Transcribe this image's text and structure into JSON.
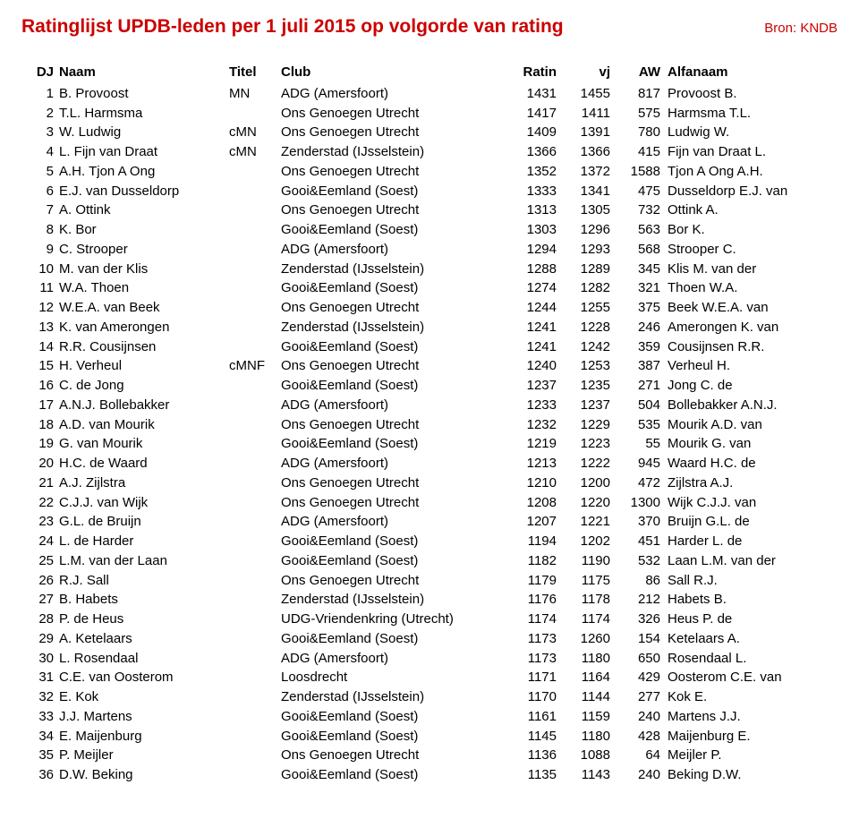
{
  "title": "Ratinglijst UPDB-leden per 1 juli 2015 op volgorde van rating",
  "source": "Bron: KNDB",
  "colors": {
    "title": "#cc0000",
    "text": "#000000",
    "background": "#ffffff"
  },
  "columns": {
    "dj": "DJ",
    "naam": "Naam",
    "titel": "Titel",
    "club": "Club",
    "ratin": "Ratin",
    "vj": "vj",
    "aw": "AW",
    "alfanaam": "Alfanaam"
  },
  "rows": [
    {
      "dj": "1",
      "naam": "B. Provoost",
      "titel": "MN",
      "club": "ADG (Amersfoort)",
      "ratin": "1431",
      "vj": "1455",
      "aw": "817",
      "alfa": "Provoost B."
    },
    {
      "dj": "2",
      "naam": "T.L. Harmsma",
      "titel": "",
      "club": "Ons Genoegen Utrecht",
      "ratin": "1417",
      "vj": "1411",
      "aw": "575",
      "alfa": "Harmsma T.L."
    },
    {
      "dj": "3",
      "naam": "W. Ludwig",
      "titel": "cMN",
      "club": "Ons Genoegen Utrecht",
      "ratin": "1409",
      "vj": "1391",
      "aw": "780",
      "alfa": "Ludwig W."
    },
    {
      "dj": "4",
      "naam": "L. Fijn van Draat",
      "titel": "cMN",
      "club": "Zenderstad (IJsselstein)",
      "ratin": "1366",
      "vj": "1366",
      "aw": "415",
      "alfa": "Fijn van Draat L."
    },
    {
      "dj": "5",
      "naam": "A.H. Tjon A Ong",
      "titel": "",
      "club": "Ons Genoegen Utrecht",
      "ratin": "1352",
      "vj": "1372",
      "aw": "1588",
      "alfa": "Tjon A Ong A.H."
    },
    {
      "dj": "6",
      "naam": "E.J. van Dusseldorp",
      "titel": "",
      "club": "Gooi&Eemland (Soest)",
      "ratin": "1333",
      "vj": "1341",
      "aw": "475",
      "alfa": "Dusseldorp E.J. van"
    },
    {
      "dj": "7",
      "naam": "A. Ottink",
      "titel": "",
      "club": "Ons Genoegen Utrecht",
      "ratin": "1313",
      "vj": "1305",
      "aw": "732",
      "alfa": "Ottink A."
    },
    {
      "dj": "8",
      "naam": "K. Bor",
      "titel": "",
      "club": "Gooi&Eemland (Soest)",
      "ratin": "1303",
      "vj": "1296",
      "aw": "563",
      "alfa": "Bor K."
    },
    {
      "dj": "9",
      "naam": "C. Strooper",
      "titel": "",
      "club": "ADG (Amersfoort)",
      "ratin": "1294",
      "vj": "1293",
      "aw": "568",
      "alfa": "Strooper C."
    },
    {
      "dj": "10",
      "naam": "M. van der Klis",
      "titel": "",
      "club": "Zenderstad (IJsselstein)",
      "ratin": "1288",
      "vj": "1289",
      "aw": "345",
      "alfa": "Klis M. van der"
    },
    {
      "dj": "11",
      "naam": "W.A. Thoen",
      "titel": "",
      "club": "Gooi&Eemland (Soest)",
      "ratin": "1274",
      "vj": "1282",
      "aw": "321",
      "alfa": "Thoen W.A."
    },
    {
      "dj": "12",
      "naam": "W.E.A. van Beek",
      "titel": "",
      "club": "Ons Genoegen Utrecht",
      "ratin": "1244",
      "vj": "1255",
      "aw": "375",
      "alfa": "Beek W.E.A. van"
    },
    {
      "dj": "13",
      "naam": "K. van Amerongen",
      "titel": "",
      "club": "Zenderstad (IJsselstein)",
      "ratin": "1241",
      "vj": "1228",
      "aw": "246",
      "alfa": "Amerongen K. van"
    },
    {
      "dj": "14",
      "naam": "R.R. Cousijnsen",
      "titel": "",
      "club": "Gooi&Eemland (Soest)",
      "ratin": "1241",
      "vj": "1242",
      "aw": "359",
      "alfa": "Cousijnsen R.R."
    },
    {
      "dj": "15",
      "naam": "H. Verheul",
      "titel": "cMNF",
      "club": "Ons Genoegen Utrecht",
      "ratin": "1240",
      "vj": "1253",
      "aw": "387",
      "alfa": "Verheul H."
    },
    {
      "dj": "16",
      "naam": "C. de Jong",
      "titel": "",
      "club": "Gooi&Eemland (Soest)",
      "ratin": "1237",
      "vj": "1235",
      "aw": "271",
      "alfa": "Jong C. de"
    },
    {
      "dj": "17",
      "naam": "A.N.J. Bollebakker",
      "titel": "",
      "club": "ADG (Amersfoort)",
      "ratin": "1233",
      "vj": "1237",
      "aw": "504",
      "alfa": "Bollebakker A.N.J."
    },
    {
      "dj": "18",
      "naam": "A.D. van Mourik",
      "titel": "",
      "club": "Ons Genoegen Utrecht",
      "ratin": "1232",
      "vj": "1229",
      "aw": "535",
      "alfa": "Mourik A.D. van"
    },
    {
      "dj": "19",
      "naam": "G. van Mourik",
      "titel": "",
      "club": "Gooi&Eemland (Soest)",
      "ratin": "1219",
      "vj": "1223",
      "aw": "55",
      "alfa": "Mourik G. van"
    },
    {
      "dj": "20",
      "naam": "H.C. de Waard",
      "titel": "",
      "club": "ADG (Amersfoort)",
      "ratin": "1213",
      "vj": "1222",
      "aw": "945",
      "alfa": "Waard H.C. de"
    },
    {
      "dj": "21",
      "naam": "A.J. Zijlstra",
      "titel": "",
      "club": "Ons Genoegen Utrecht",
      "ratin": "1210",
      "vj": "1200",
      "aw": "472",
      "alfa": "Zijlstra A.J."
    },
    {
      "dj": "22",
      "naam": "C.J.J. van Wijk",
      "titel": "",
      "club": "Ons Genoegen Utrecht",
      "ratin": "1208",
      "vj": "1220",
      "aw": "1300",
      "alfa": "Wijk C.J.J. van"
    },
    {
      "dj": "23",
      "naam": "G.L. de Bruijn",
      "titel": "",
      "club": "ADG (Amersfoort)",
      "ratin": "1207",
      "vj": "1221",
      "aw": "370",
      "alfa": "Bruijn G.L. de"
    },
    {
      "dj": "24",
      "naam": "L. de Harder",
      "titel": "",
      "club": "Gooi&Eemland (Soest)",
      "ratin": "1194",
      "vj": "1202",
      "aw": "451",
      "alfa": "Harder L. de"
    },
    {
      "dj": "25",
      "naam": "L.M. van der Laan",
      "titel": "",
      "club": "Gooi&Eemland (Soest)",
      "ratin": "1182",
      "vj": "1190",
      "aw": "532",
      "alfa": "Laan L.M. van der"
    },
    {
      "dj": "26",
      "naam": "R.J. Sall",
      "titel": "",
      "club": "Ons Genoegen Utrecht",
      "ratin": "1179",
      "vj": "1175",
      "aw": "86",
      "alfa": "Sall R.J."
    },
    {
      "dj": "27",
      "naam": "B. Habets",
      "titel": "",
      "club": "Zenderstad (IJsselstein)",
      "ratin": "1176",
      "vj": "1178",
      "aw": "212",
      "alfa": "Habets B."
    },
    {
      "dj": "28",
      "naam": "P. de Heus",
      "titel": "",
      "club": "UDG-Vriendenkring (Utrecht)",
      "ratin": "1174",
      "vj": "1174",
      "aw": "326",
      "alfa": "Heus P. de"
    },
    {
      "dj": "29",
      "naam": "A. Ketelaars",
      "titel": "",
      "club": "Gooi&Eemland (Soest)",
      "ratin": "1173",
      "vj": "1260",
      "aw": "154",
      "alfa": "Ketelaars A."
    },
    {
      "dj": "30",
      "naam": "L. Rosendaal",
      "titel": "",
      "club": "ADG (Amersfoort)",
      "ratin": "1173",
      "vj": "1180",
      "aw": "650",
      "alfa": "Rosendaal L."
    },
    {
      "dj": "31",
      "naam": "C.E. van Oosterom",
      "titel": "",
      "club": "Loosdrecht",
      "ratin": "1171",
      "vj": "1164",
      "aw": "429",
      "alfa": "Oosterom C.E. van"
    },
    {
      "dj": "32",
      "naam": "E. Kok",
      "titel": "",
      "club": "Zenderstad (IJsselstein)",
      "ratin": "1170",
      "vj": "1144",
      "aw": "277",
      "alfa": "Kok E."
    },
    {
      "dj": "33",
      "naam": "J.J. Martens",
      "titel": "",
      "club": "Gooi&Eemland (Soest)",
      "ratin": "1161",
      "vj": "1159",
      "aw": "240",
      "alfa": "Martens J.J."
    },
    {
      "dj": "34",
      "naam": "E. Maijenburg",
      "titel": "",
      "club": "Gooi&Eemland (Soest)",
      "ratin": "1145",
      "vj": "1180",
      "aw": "428",
      "alfa": "Maijenburg E."
    },
    {
      "dj": "35",
      "naam": "P. Meijler",
      "titel": "",
      "club": "Ons Genoegen Utrecht",
      "ratin": "1136",
      "vj": "1088",
      "aw": "64",
      "alfa": "Meijler P."
    },
    {
      "dj": "36",
      "naam": "D.W. Beking",
      "titel": "",
      "club": "Gooi&Eemland (Soest)",
      "ratin": "1135",
      "vj": "1143",
      "aw": "240",
      "alfa": "Beking D.W."
    }
  ]
}
